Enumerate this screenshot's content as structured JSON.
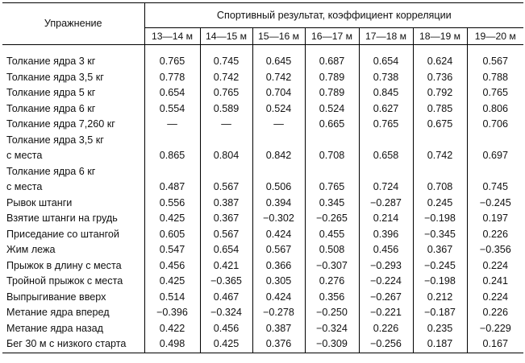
{
  "header": {
    "exercise_label": "Упражнение",
    "result_label": "Спортивный результат, коэффициент корреляции",
    "ages": [
      "13—14 м",
      "14—15 м",
      "15—16 м",
      "16—17 м",
      "17—18 м",
      "18—19 м",
      "19—20 м"
    ]
  },
  "rows": [
    {
      "label": "Толкание ядра 3 кг",
      "values": [
        "0.765",
        "0.745",
        "0.645",
        "0.687",
        "0.654",
        "0.624",
        "0.567"
      ]
    },
    {
      "label": "Толкание ядра 3,5 кг",
      "values": [
        "0.778",
        "0.742",
        "0.742",
        "0.789",
        "0.738",
        "0.736",
        "0.788"
      ]
    },
    {
      "label": "Толкание ядра 5 кг",
      "values": [
        "0.654",
        "0.765",
        "0.704",
        "0.789",
        "0.845",
        "0.792",
        "0.765"
      ]
    },
    {
      "label": "Толкание ядра 6 кг",
      "values": [
        "0.554",
        "0.589",
        "0.524",
        "0.524",
        "0.627",
        "0.785",
        "0.806"
      ]
    },
    {
      "label": "Толкание ядра 7,260 кг",
      "values": [
        "—",
        "—",
        "—",
        "0.665",
        "0.765",
        "0.675",
        "0.706"
      ]
    },
    {
      "label": "Толкание ядра 3,5 кг",
      "values": [
        "",
        "",
        "",
        "",
        "",
        "",
        ""
      ]
    },
    {
      "label": "с места",
      "values": [
        "0.865",
        "0.804",
        "0.842",
        "0.708",
        "0.658",
        "0.742",
        "0.697"
      ]
    },
    {
      "label": "Толкание ядра 6 кг",
      "values": [
        "",
        "",
        "",
        "",
        "",
        "",
        ""
      ]
    },
    {
      "label": "с места",
      "values": [
        "0.487",
        "0.567",
        "0.506",
        "0.765",
        "0.724",
        "0.708",
        "0.745"
      ]
    },
    {
      "label": "Рывок штанги",
      "values": [
        "0.556",
        "0.387",
        "0.394",
        "0.345",
        "−0.287",
        "0.245",
        "−0.245"
      ]
    },
    {
      "label": "Взятие штанги на грудь",
      "values": [
        "0.425",
        "0.367",
        "−0.302",
        "−0.265",
        "0.214",
        "−0.198",
        "0.197"
      ]
    },
    {
      "label": "Приседание со штангой",
      "values": [
        "0.605",
        "0.567",
        "0.424",
        "0.455",
        "0.396",
        "−0.345",
        "0.226"
      ]
    },
    {
      "label": "Жим лежа",
      "values": [
        "0.547",
        "0.654",
        "0.567",
        "0.508",
        "0.456",
        "0.367",
        "−0.356"
      ]
    },
    {
      "label": "Прыжок в длину с места",
      "values": [
        "0.456",
        "0.421",
        "0.366",
        "−0.307",
        "−0.293",
        "−0.245",
        "0.224"
      ]
    },
    {
      "label": "Тройной прыжок с места",
      "values": [
        "0.425",
        "−0.365",
        "0.305",
        "0.276",
        "−0.224",
        "−0.198",
        "0.241"
      ]
    },
    {
      "label": "Выпрыгивание вверх",
      "values": [
        "0.514",
        "0.467",
        "0.424",
        "0.356",
        "−0.267",
        "0.212",
        "0.224"
      ]
    },
    {
      "label": "Метание ядра вперед",
      "values": [
        "−0.396",
        "−0.324",
        "−0.278",
        "−0.250",
        "−0.221",
        "−0.187",
        "0.226"
      ]
    },
    {
      "label": "Метание ядра назад",
      "values": [
        "0.422",
        "0.456",
        "0.387",
        "−0.324",
        "0.226",
        "0.235",
        "−0.229"
      ]
    },
    {
      "label": "Бег 30 м с низкого старта",
      "values": [
        "0.498",
        "0.425",
        "0.376",
        "−0.309",
        "−0.256",
        "0.187",
        "0.167"
      ]
    }
  ]
}
